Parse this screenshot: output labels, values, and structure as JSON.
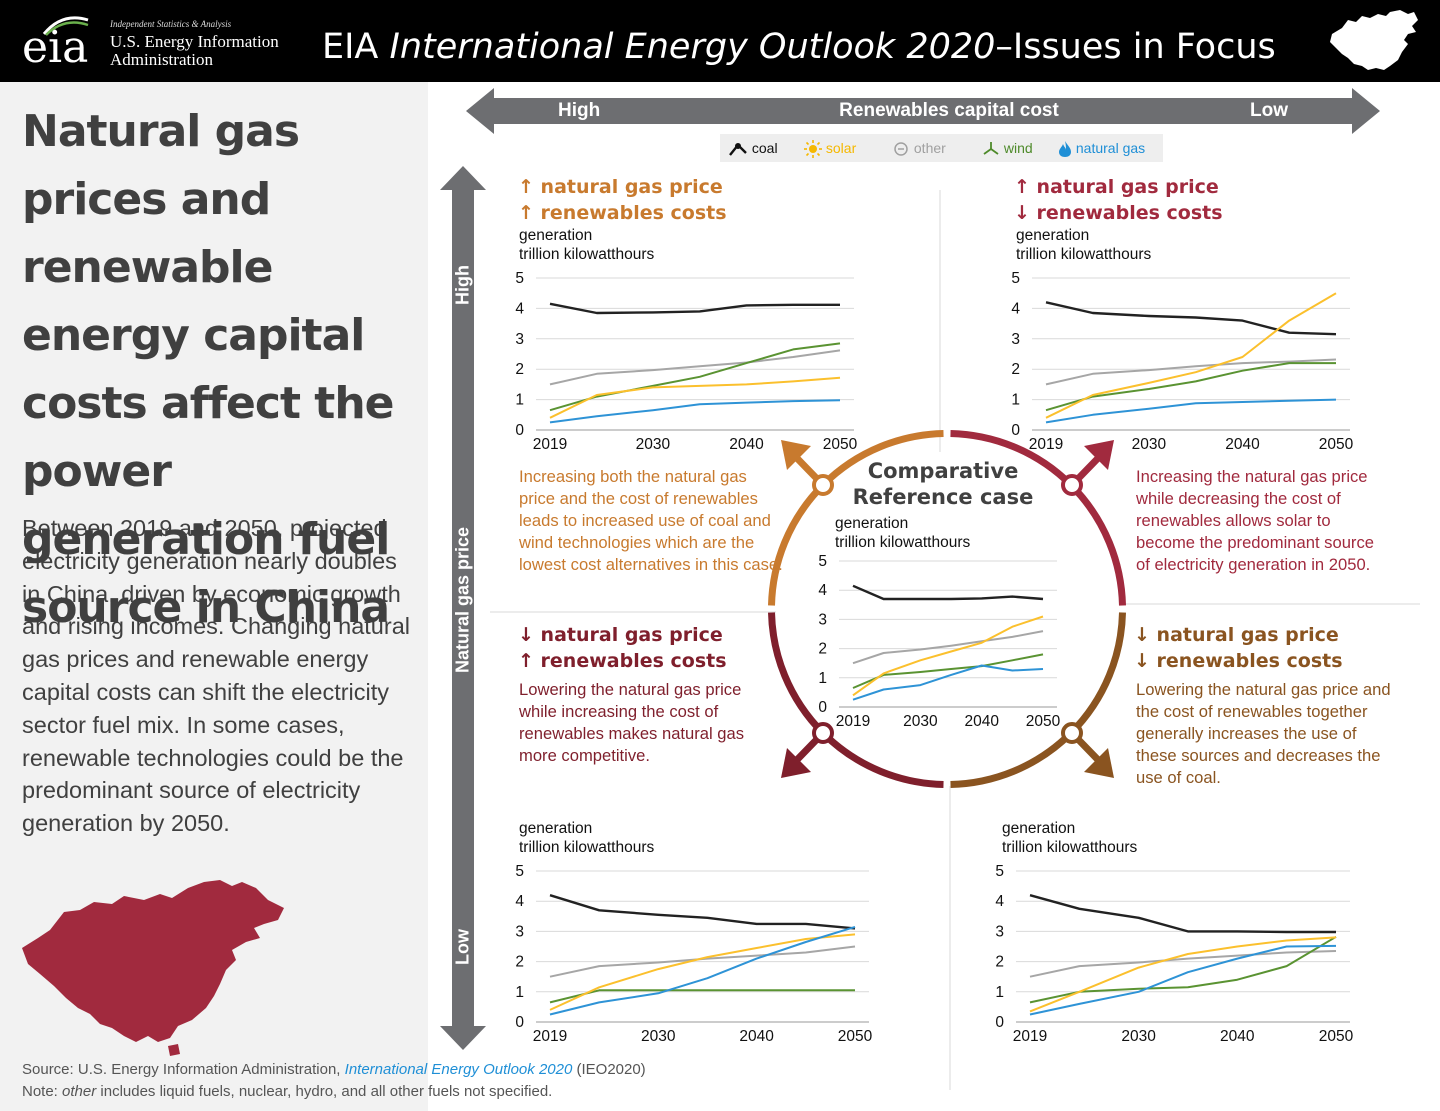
{
  "header": {
    "logo_word": "eia",
    "logo_tagline": "Independent Statistics & Analysis",
    "org_line1": "U.S. Energy Information",
    "org_line2": "Administration",
    "title_prefix": "EIA ",
    "title_italic": "International Energy Outlook 2020",
    "title_suffix": "–Issues in Focus"
  },
  "headline": "Natural gas prices and renewable energy capital costs affect the power generation fuel source in China",
  "body": "Between 2019 and 2050, projected electricity generation nearly doubles in China, driven by economic growth and rising incomes. Changing natural gas prices and renewable energy capital costs can shift the electricity sector fuel mix. In some cases, renewable technologies could be the predominant source of electricity generation by 2050.",
  "source": {
    "prefix": "Source: U.S. Energy Information Administration, ",
    "link": "International Energy Outlook 2020",
    "suffix": " (IEO2020)"
  },
  "note": {
    "prefix": "Note: ",
    "italic": "other",
    "suffix": " includes liquid fuels, nuclear, hydro, and all other fuels not specified."
  },
  "axes": {
    "horizontal_label": "Renewables capital cost",
    "horizontal_left": "High",
    "horizontal_right": "Low",
    "vertical_label": "Natural gas price",
    "vertical_top": "High",
    "vertical_bottom": "Low"
  },
  "legend": [
    {
      "name": "coal",
      "color": "#222222",
      "icon": "coal-icon"
    },
    {
      "name": "solar",
      "color": "#f5b800",
      "icon": "sun-icon"
    },
    {
      "name": "other",
      "color": "#a0a0a0",
      "icon": "circle-minus-icon"
    },
    {
      "name": "wind",
      "color": "#4e8a2a",
      "icon": "wind-turbine-icon"
    },
    {
      "name": "natural gas",
      "color": "#1f8fd6",
      "icon": "flame-icon"
    }
  ],
  "colors": {
    "orange": "#c87a2e",
    "crimson": "#a12a3e",
    "darkred": "#7f1f2c",
    "brown": "#8a5420",
    "series": {
      "coal": "#222222",
      "solar": "#fbc02d",
      "other": "#a6a6a6",
      "wind": "#5a9332",
      "gas": "#2e93d6"
    }
  },
  "reference_title": "Comparative Reference case",
  "quadrants": {
    "tl": {
      "line1_arrow": "↑",
      "line1": "natural gas price",
      "line2_arrow": "↑",
      "line2": "renewables costs",
      "description": "Increasing both the natural gas price and the cost of renewables leads to increased use of coal and wind technologies which are the lowest cost alternatives in this case."
    },
    "tr": {
      "line1_arrow": "↑",
      "line1": "natural gas price",
      "line2_arrow": "↓",
      "line2": "renewables costs",
      "description": "Increasing the natural gas price while decreasing the cost of renewables allows solar to become the predominant source of electricity generation in 2050."
    },
    "bl": {
      "line1_arrow": "↓",
      "line1": "natural gas price",
      "line2_arrow": "↑",
      "line2": "renewables costs",
      "description": "Lowering the natural gas price while increasing the cost of renewables makes natural gas more competitive."
    },
    "br": {
      "line1_arrow": "↓",
      "line1": "natural gas price",
      "line2_arrow": "↓",
      "line2": "renewables costs",
      "description": "Lowering the natural gas price and the cost of renewables together generally increases the use of these sources and decreases the use of coal."
    }
  },
  "chart_data": [
    {
      "id": "tl",
      "type": "line",
      "ylabel": "generation\ntrillion kilowatthours",
      "ylim": [
        0,
        5
      ],
      "yticks": [
        0,
        1,
        2,
        3,
        4,
        5
      ],
      "xticks": [
        2019,
        2030,
        2040,
        2050
      ],
      "x": [
        2019,
        2024,
        2030,
        2035,
        2040,
        2045,
        2050
      ],
      "series": [
        {
          "name": "coal",
          "values": [
            4.15,
            3.85,
            3.87,
            3.9,
            4.1,
            4.12,
            4.12
          ]
        },
        {
          "name": "other",
          "values": [
            1.5,
            1.85,
            1.97,
            2.1,
            2.22,
            2.4,
            2.62
          ]
        },
        {
          "name": "wind",
          "values": [
            0.65,
            1.1,
            1.45,
            1.75,
            2.2,
            2.65,
            2.85
          ]
        },
        {
          "name": "solar",
          "values": [
            0.4,
            1.15,
            1.4,
            1.45,
            1.5,
            1.6,
            1.72
          ]
        },
        {
          "name": "natural gas",
          "values": [
            0.25,
            0.45,
            0.65,
            0.85,
            0.9,
            0.95,
            0.98
          ]
        }
      ]
    },
    {
      "id": "tr",
      "type": "line",
      "ylabel": "generation\ntrillion kilowatthours",
      "ylim": [
        0,
        5
      ],
      "yticks": [
        0,
        1,
        2,
        3,
        4,
        5
      ],
      "xticks": [
        2019,
        2030,
        2040,
        2050
      ],
      "x": [
        2019,
        2024,
        2030,
        2035,
        2040,
        2045,
        2050
      ],
      "series": [
        {
          "name": "coal",
          "values": [
            4.2,
            3.85,
            3.75,
            3.7,
            3.6,
            3.2,
            3.15
          ]
        },
        {
          "name": "other",
          "values": [
            1.5,
            1.85,
            1.97,
            2.1,
            2.2,
            2.25,
            2.32
          ]
        },
        {
          "name": "wind",
          "values": [
            0.65,
            1.1,
            1.35,
            1.6,
            1.95,
            2.2,
            2.2
          ]
        },
        {
          "name": "solar",
          "values": [
            0.4,
            1.15,
            1.55,
            1.9,
            2.4,
            3.6,
            4.5
          ]
        },
        {
          "name": "natural gas",
          "values": [
            0.25,
            0.5,
            0.7,
            0.88,
            0.92,
            0.96,
            1.0
          ]
        }
      ]
    },
    {
      "id": "ref",
      "type": "line",
      "ylabel": "generation\ntrillion kilowatthours",
      "ylim": [
        0,
        5
      ],
      "yticks": [
        0,
        1,
        2,
        3,
        4,
        5
      ],
      "xticks": [
        2019,
        2030,
        2040,
        2050
      ],
      "x": [
        2019,
        2024,
        2030,
        2035,
        2040,
        2045,
        2050
      ],
      "series": [
        {
          "name": "coal",
          "values": [
            4.15,
            3.7,
            3.7,
            3.7,
            3.72,
            3.78,
            3.7
          ]
        },
        {
          "name": "other",
          "values": [
            1.5,
            1.85,
            1.97,
            2.1,
            2.25,
            2.4,
            2.6
          ]
        },
        {
          "name": "wind",
          "values": [
            0.65,
            1.1,
            1.2,
            1.3,
            1.4,
            1.6,
            1.8
          ]
        },
        {
          "name": "solar",
          "values": [
            0.4,
            1.15,
            1.6,
            1.9,
            2.2,
            2.75,
            3.1
          ]
        },
        {
          "name": "natural gas",
          "values": [
            0.25,
            0.6,
            0.75,
            1.1,
            1.42,
            1.25,
            1.3
          ]
        }
      ]
    },
    {
      "id": "bl",
      "type": "line",
      "ylabel": "generation\ntrillion kilowatthours",
      "ylim": [
        0,
        5
      ],
      "yticks": [
        0,
        1,
        2,
        3,
        4,
        5
      ],
      "xticks": [
        2019,
        2030,
        2040,
        2050
      ],
      "x": [
        2019,
        2024,
        2030,
        2035,
        2040,
        2045,
        2050
      ],
      "series": [
        {
          "name": "coal",
          "values": [
            4.2,
            3.7,
            3.55,
            3.45,
            3.25,
            3.25,
            3.1
          ]
        },
        {
          "name": "other",
          "values": [
            1.5,
            1.85,
            1.97,
            2.1,
            2.2,
            2.3,
            2.5
          ]
        },
        {
          "name": "wind",
          "values": [
            0.65,
            1.05,
            1.05,
            1.05,
            1.05,
            1.05,
            1.05
          ]
        },
        {
          "name": "solar",
          "values": [
            0.4,
            1.15,
            1.75,
            2.15,
            2.45,
            2.75,
            2.9
          ]
        },
        {
          "name": "natural gas",
          "values": [
            0.25,
            0.65,
            0.95,
            1.45,
            2.1,
            2.65,
            3.15
          ]
        }
      ]
    },
    {
      "id": "br",
      "type": "line",
      "ylabel": "generation\ntrillion kilowatthours",
      "ylim": [
        0,
        5
      ],
      "yticks": [
        0,
        1,
        2,
        3,
        4,
        5
      ],
      "xticks": [
        2019,
        2030,
        2040,
        2050
      ],
      "x": [
        2019,
        2024,
        2030,
        2035,
        2040,
        2045,
        2050
      ],
      "series": [
        {
          "name": "coal",
          "values": [
            4.2,
            3.75,
            3.45,
            3.0,
            3.0,
            2.98,
            2.98
          ]
        },
        {
          "name": "other",
          "values": [
            1.5,
            1.85,
            1.97,
            2.1,
            2.2,
            2.3,
            2.35
          ]
        },
        {
          "name": "wind",
          "values": [
            0.65,
            1.0,
            1.1,
            1.15,
            1.4,
            1.85,
            2.82
          ]
        },
        {
          "name": "solar",
          "values": [
            0.35,
            1.0,
            1.8,
            2.25,
            2.5,
            2.7,
            2.8
          ]
        },
        {
          "name": "natural gas",
          "values": [
            0.25,
            0.6,
            1.0,
            1.65,
            2.1,
            2.5,
            2.52
          ]
        }
      ]
    }
  ]
}
